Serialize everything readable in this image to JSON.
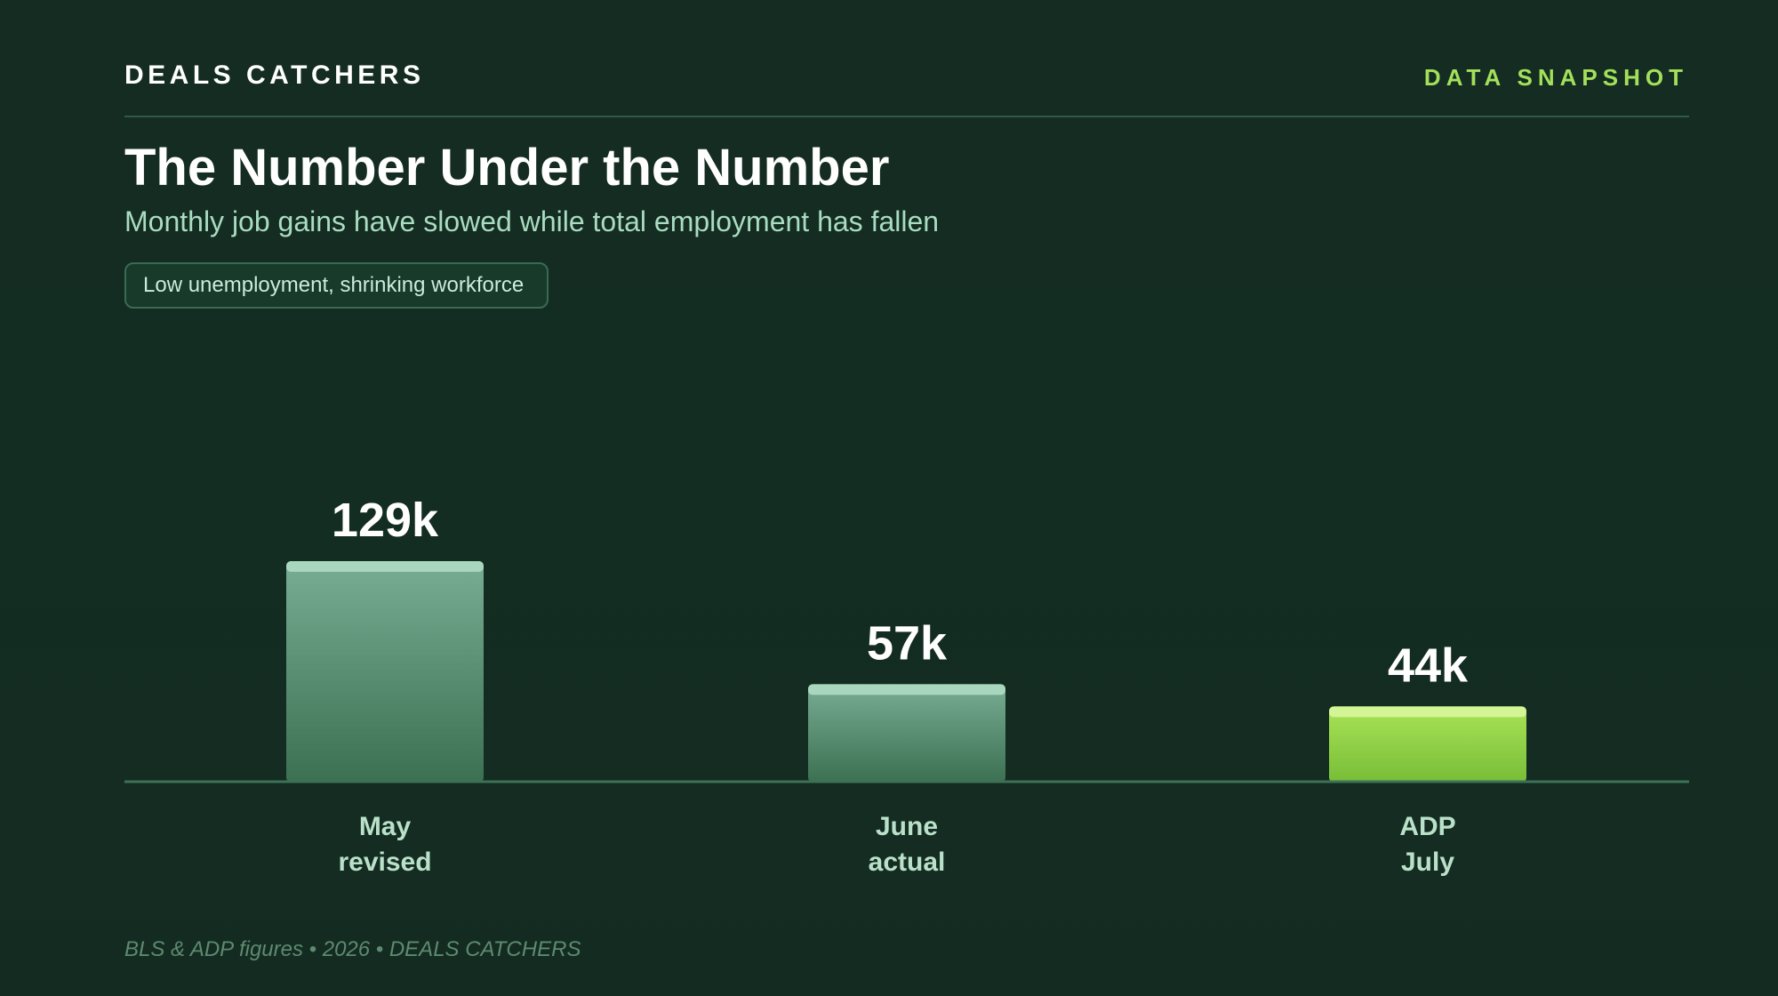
{
  "header": {
    "brand": "DEALS CATCHERS",
    "tag": "DATA SNAPSHOT"
  },
  "title": "The Number Under the Number",
  "subtitle": "Monthly job gains have slowed while total employment has fallen",
  "pill": "Low unemployment, shrinking workforce",
  "footer": "BLS & ADP figures • 2026 • DEALS CATCHERS",
  "colors": {
    "background": "#132d22",
    "accent": "#a3e05a",
    "bar_muted": "#5a9a7a",
    "bar_highlight": "#8fd14a"
  },
  "chart_data": {
    "type": "bar",
    "categories": [
      [
        "May",
        "revised"
      ],
      [
        "June",
        "actual"
      ],
      [
        "ADP",
        "July"
      ]
    ],
    "values": [
      129,
      57,
      44
    ],
    "value_labels": [
      "129k",
      "57k",
      "44k"
    ],
    "highlight_index": 2,
    "unit": "k",
    "ylim": [
      0,
      129
    ],
    "grid": false,
    "legend": "none"
  }
}
